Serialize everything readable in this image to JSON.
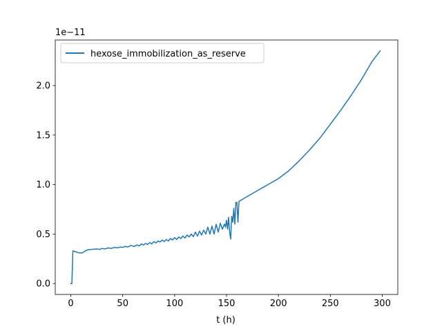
{
  "chart_data": {
    "type": "line",
    "title": "",
    "xlabel": "t (h)",
    "ylabel": "",
    "y_offset_label": "1e−11",
    "y_scale_factor": 1e-11,
    "xlim": [
      -15,
      315
    ],
    "ylim": [
      -0.11,
      2.46
    ],
    "x_ticks": [
      0,
      50,
      100,
      150,
      200,
      250,
      300
    ],
    "x_tick_labels": [
      "0",
      "50",
      "100",
      "150",
      "200",
      "250",
      "300"
    ],
    "y_ticks": [
      0.0,
      0.5,
      1.0,
      1.5,
      2.0
    ],
    "y_tick_labels": [
      "0.0",
      "0.5",
      "1.0",
      "1.5",
      "2.0"
    ],
    "grid": false,
    "legend_position": "upper-left",
    "series": [
      {
        "name": "hexose_immobilization_as_reserve",
        "color": "#1f77b4",
        "x": [
          0,
          1,
          2,
          5,
          8,
          11,
          14,
          16,
          20,
          25,
          28,
          30,
          33,
          36,
          39,
          42,
          45,
          48,
          50,
          52,
          55,
          58,
          61,
          64,
          66,
          68,
          70,
          72,
          74,
          76,
          78,
          80,
          82,
          84,
          86,
          88,
          90,
          92,
          94,
          96,
          98,
          100,
          102,
          104,
          106,
          108,
          110,
          112,
          114,
          116,
          118,
          120,
          122,
          124,
          126,
          128,
          130,
          132,
          134,
          136,
          138,
          140,
          142,
          144,
          146,
          148,
          149,
          150,
          151,
          152,
          153,
          154,
          155,
          156,
          157,
          158,
          159,
          160,
          161,
          162,
          170,
          180,
          190,
          200,
          210,
          220,
          230,
          240,
          250,
          260,
          270,
          280,
          290,
          298
        ],
        "y": [
          0.0,
          0.0,
          0.33,
          0.32,
          0.31,
          0.31,
          0.33,
          0.34,
          0.345,
          0.35,
          0.345,
          0.355,
          0.35,
          0.36,
          0.355,
          0.365,
          0.36,
          0.37,
          0.365,
          0.375,
          0.37,
          0.385,
          0.375,
          0.39,
          0.38,
          0.4,
          0.39,
          0.405,
          0.395,
          0.415,
          0.4,
          0.425,
          0.41,
          0.43,
          0.42,
          0.44,
          0.425,
          0.445,
          0.43,
          0.455,
          0.44,
          0.465,
          0.445,
          0.47,
          0.455,
          0.48,
          0.46,
          0.49,
          0.47,
          0.5,
          0.475,
          0.52,
          0.48,
          0.53,
          0.49,
          0.54,
          0.5,
          0.57,
          0.5,
          0.58,
          0.5,
          0.6,
          0.52,
          0.61,
          0.55,
          0.6,
          0.57,
          0.64,
          0.55,
          0.67,
          0.52,
          0.45,
          0.68,
          0.62,
          0.76,
          0.6,
          0.82,
          0.82,
          0.62,
          0.83,
          0.88,
          0.94,
          1.0,
          1.06,
          1.14,
          1.24,
          1.35,
          1.47,
          1.61,
          1.75,
          1.9,
          2.06,
          2.24,
          2.35
        ]
      }
    ]
  }
}
